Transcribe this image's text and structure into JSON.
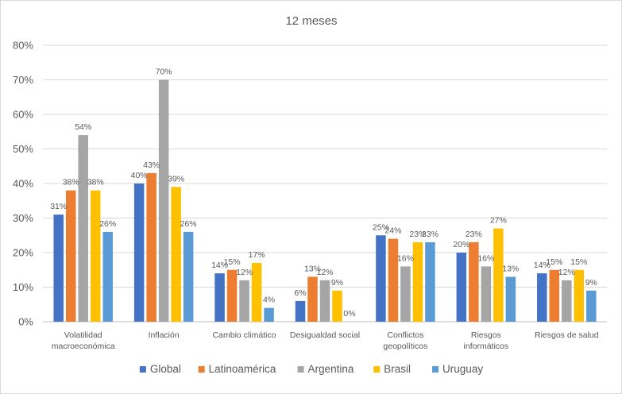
{
  "chart_data": {
    "type": "bar",
    "title": "12 meses",
    "xlabel": "",
    "ylabel": "",
    "ylim": [
      0,
      80
    ],
    "y_ticks": [
      "0%",
      "10%",
      "20%",
      "30%",
      "40%",
      "50%",
      "60%",
      "70%",
      "80%"
    ],
    "grid": true,
    "legend_position": "bottom",
    "categories": [
      [
        "Volatilidad",
        "macroeconómica"
      ],
      [
        "Inflación"
      ],
      [
        "Cambio climático"
      ],
      [
        "Desigualdad social"
      ],
      [
        "Conflictos",
        "geopolíticos"
      ],
      [
        "Riesgos",
        "informáticos"
      ],
      [
        "Riesgos de salud"
      ]
    ],
    "series": [
      {
        "name": "Global",
        "color": "#4472C4",
        "values": [
          31,
          40,
          14,
          6,
          25,
          20,
          14
        ]
      },
      {
        "name": "Latinoamérica",
        "color": "#ED7D31",
        "values": [
          38,
          43,
          15,
          13,
          24,
          23,
          15
        ]
      },
      {
        "name": "Argentina",
        "color": "#A5A5A5",
        "values": [
          54,
          70,
          12,
          12,
          16,
          16,
          12
        ]
      },
      {
        "name": "Brasil",
        "color": "#FFC000",
        "values": [
          38,
          39,
          17,
          9,
          23,
          27,
          15
        ]
      },
      {
        "name": "Uruguay",
        "color": "#5B9BD5",
        "values": [
          26,
          26,
          4,
          0,
          23,
          13,
          9
        ]
      }
    ]
  }
}
